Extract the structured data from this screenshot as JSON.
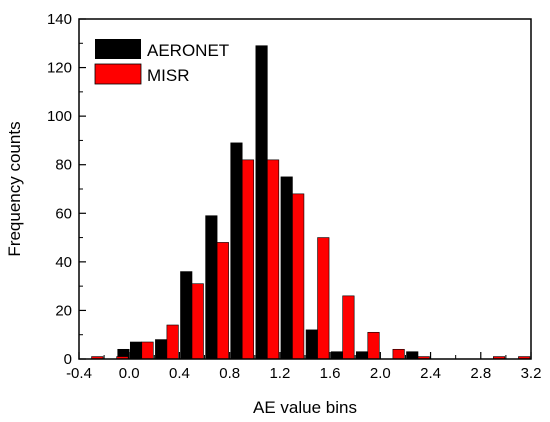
{
  "chart_data": {
    "type": "bar",
    "xlabel": "AE value bins",
    "ylabel": "Frequency counts",
    "xlim": [
      -0.4,
      3.2
    ],
    "ylim": [
      0,
      140
    ],
    "x_ticks": [
      "-0.4",
      "0.0",
      "0.4",
      "0.8",
      "1.2",
      "1.6",
      "2.0",
      "2.4",
      "2.8",
      "3.2"
    ],
    "y_ticks": [
      "0",
      "20",
      "40",
      "60",
      "80",
      "100",
      "120",
      "140"
    ],
    "x": [
      -0.3,
      -0.2,
      -0.1,
      0.0,
      0.1,
      0.2,
      0.3,
      0.4,
      0.5,
      0.6,
      0.7,
      0.8,
      0.9,
      1.0,
      1.1,
      1.2,
      1.3,
      1.4,
      1.5,
      1.6,
      1.7,
      1.8,
      1.9,
      2.0,
      2.1,
      2.2,
      2.3,
      2.4,
      2.5,
      2.6,
      2.7,
      2.8,
      2.9,
      3.0,
      3.1,
      3.2
    ],
    "series": [
      {
        "name": "AERONET",
        "color": "#000000",
        "values": [
          0,
          0,
          0,
          4,
          7,
          0,
          8,
          0,
          36,
          0,
          59,
          0,
          89,
          0,
          129,
          0,
          75,
          0,
          12,
          0,
          3,
          0,
          3,
          0,
          0,
          0,
          3,
          0,
          0,
          0,
          0,
          0,
          0,
          0,
          0,
          0
        ]
      },
      {
        "name": "MISR",
        "color": "#ff0000",
        "values": [
          1,
          0,
          1,
          0,
          7,
          0,
          14,
          0,
          31,
          0,
          48,
          0,
          82,
          0,
          82,
          0,
          68,
          0,
          50,
          0,
          26,
          0,
          11,
          0,
          4,
          0,
          1,
          0,
          0,
          0,
          0,
          0,
          1,
          0,
          1,
          0
        ]
      }
    ],
    "legend_position": "top-left",
    "grid": false
  }
}
